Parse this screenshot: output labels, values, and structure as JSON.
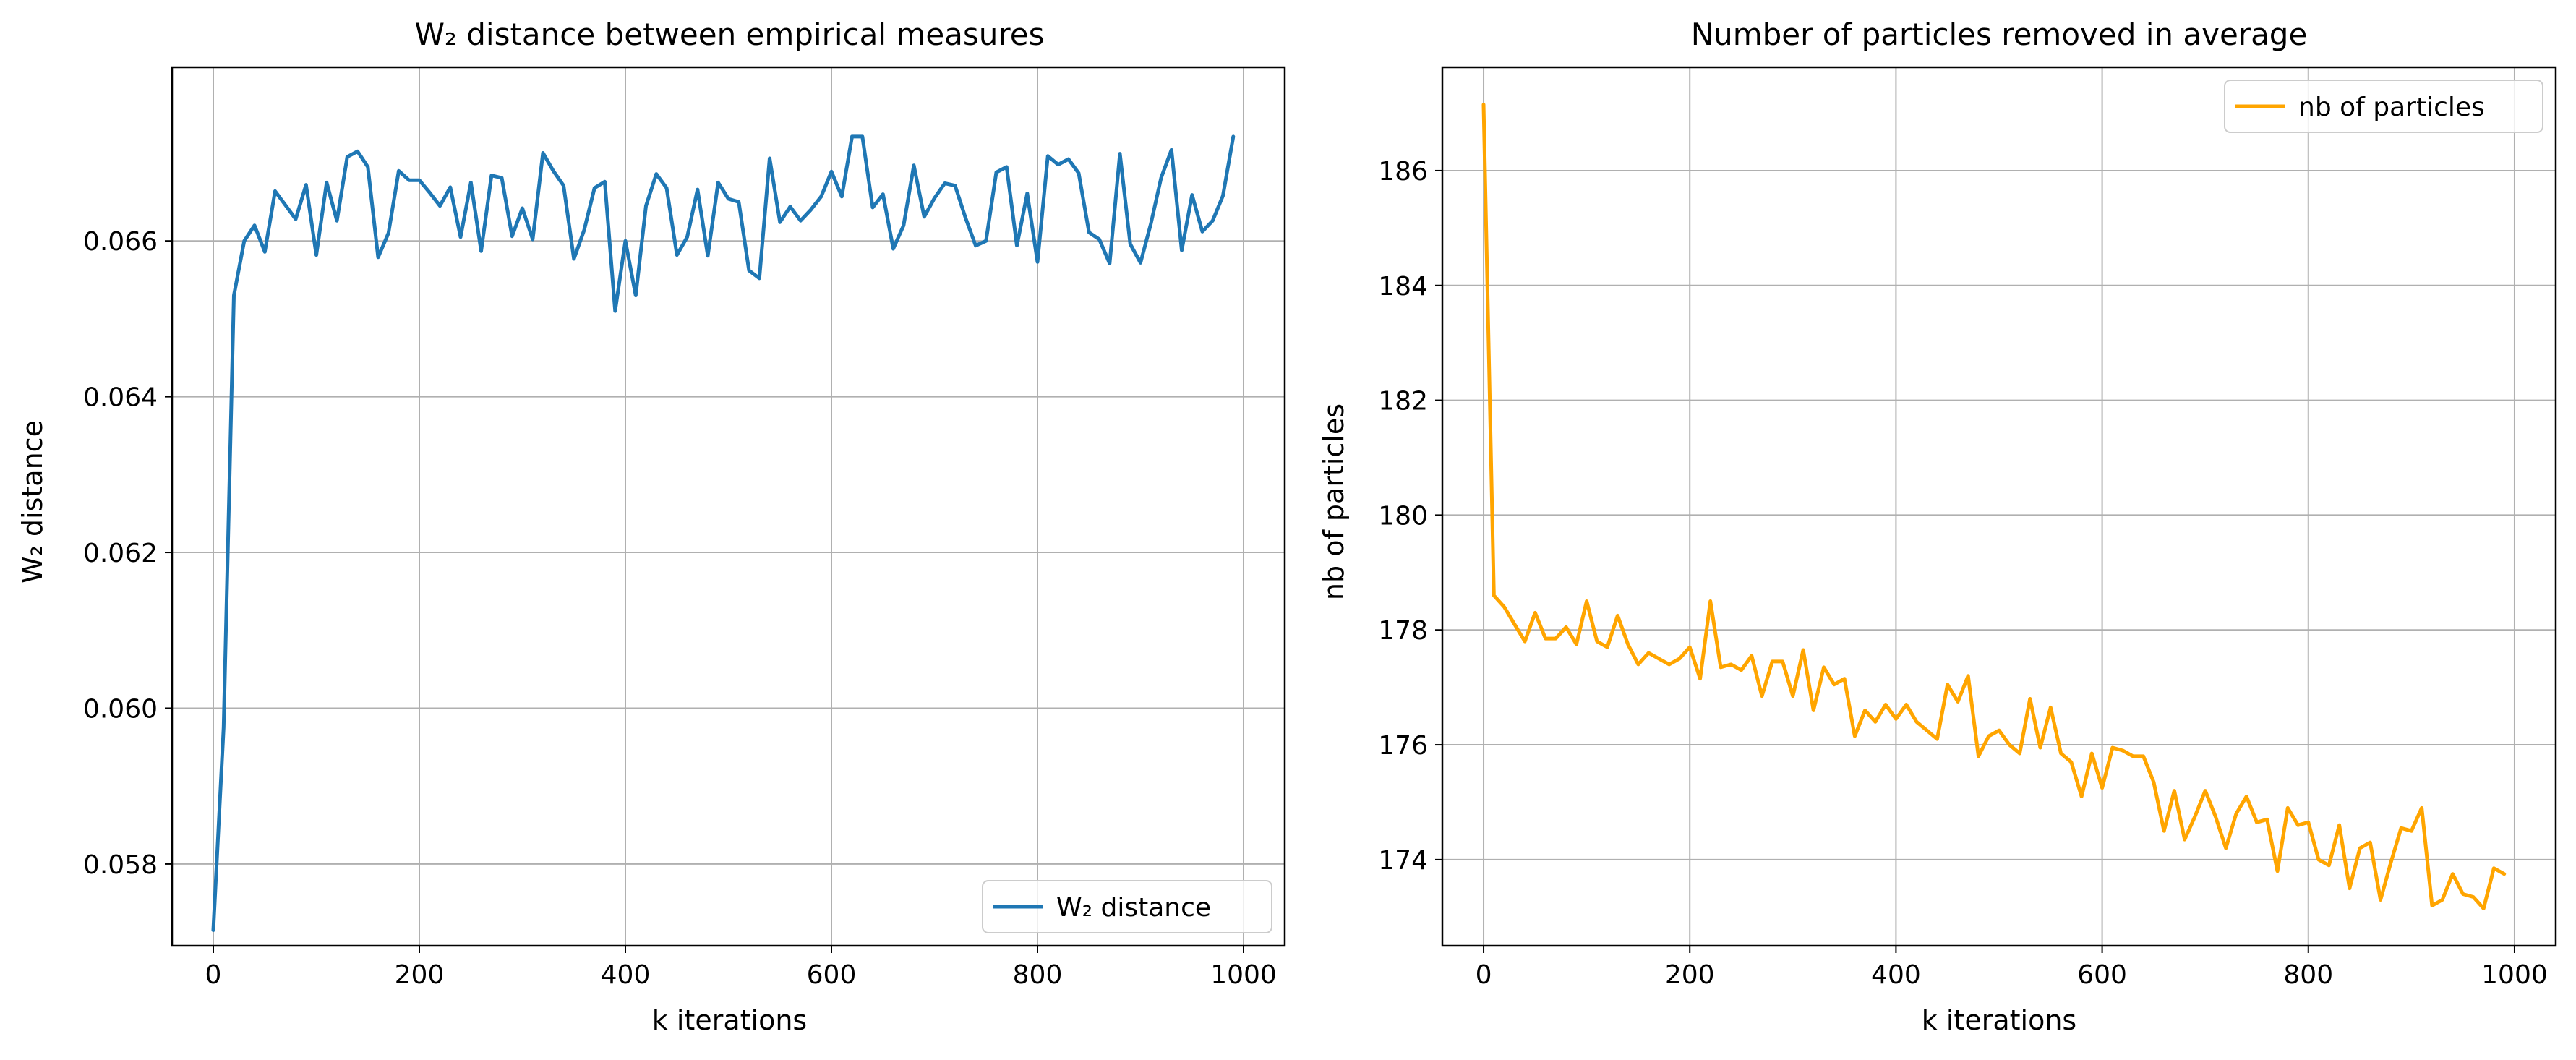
{
  "chart_data": [
    {
      "type": "line",
      "title": "W₂ distance between empirical measures",
      "xlabel": "k iterations",
      "ylabel": "W₂ distance",
      "xlim": [
        -40,
        1040
      ],
      "ylim": [
        0.05695,
        0.06823
      ],
      "xticks": [
        0,
        200,
        400,
        600,
        800,
        1000
      ],
      "xtick_labels": [
        "0",
        "200",
        "400",
        "600",
        "800",
        "1000"
      ],
      "yticks": [
        0.058,
        0.06,
        0.062,
        0.064,
        0.066
      ],
      "ytick_labels": [
        "0.058",
        "0.060",
        "0.062",
        "0.064",
        "0.066"
      ],
      "grid": true,
      "legend_position": "lower-right",
      "series": [
        {
          "name": "W₂ distance",
          "color": "#1f77b4",
          "x": [
            0,
            10,
            20,
            30,
            40,
            50,
            60,
            70,
            80,
            90,
            100,
            110,
            120,
            130,
            140,
            150,
            160,
            170,
            180,
            190,
            200,
            210,
            220,
            230,
            240,
            250,
            260,
            270,
            280,
            290,
            300,
            310,
            320,
            330,
            340,
            350,
            360,
            370,
            380,
            390,
            400,
            410,
            420,
            430,
            440,
            450,
            460,
            470,
            480,
            490,
            500,
            510,
            520,
            530,
            540,
            550,
            560,
            570,
            580,
            590,
            600,
            610,
            620,
            630,
            640,
            650,
            660,
            670,
            680,
            690,
            700,
            710,
            720,
            730,
            740,
            750,
            760,
            770,
            780,
            790,
            800,
            810,
            820,
            830,
            840,
            850,
            860,
            870,
            880,
            890,
            900,
            910,
            920,
            930,
            940,
            950,
            960,
            970,
            980,
            990
          ],
          "y": [
            0.05715,
            0.05975,
            0.0653,
            0.066,
            0.0662,
            0.06586,
            0.06664,
            0.06646,
            0.06628,
            0.06672,
            0.06582,
            0.06675,
            0.06626,
            0.06708,
            0.06715,
            0.06695,
            0.06579,
            0.0661,
            0.0669,
            0.06678,
            0.06678,
            0.06662,
            0.06645,
            0.06669,
            0.06605,
            0.06675,
            0.06587,
            0.06684,
            0.06681,
            0.06606,
            0.06642,
            0.06602,
            0.06713,
            0.0669,
            0.06671,
            0.06577,
            0.06614,
            0.06668,
            0.06676,
            0.0651,
            0.066,
            0.0653,
            0.06645,
            0.06686,
            0.06668,
            0.06582,
            0.06605,
            0.06666,
            0.06581,
            0.06675,
            0.06654,
            0.0665,
            0.06562,
            0.06552,
            0.06706,
            0.06624,
            0.06644,
            0.06626,
            0.0664,
            0.06657,
            0.06689,
            0.06657,
            0.06734,
            0.06734,
            0.06643,
            0.0666,
            0.0659,
            0.0662,
            0.06697,
            0.06631,
            0.06655,
            0.06674,
            0.06671,
            0.0663,
            0.06594,
            0.066,
            0.06688,
            0.06695,
            0.06594,
            0.06661,
            0.06573,
            0.06709,
            0.06698,
            0.06705,
            0.06687,
            0.06611,
            0.06602,
            0.06571,
            0.06712,
            0.06596,
            0.06572,
            0.06622,
            0.06681,
            0.06717,
            0.06588,
            0.06659,
            0.06612,
            0.06626,
            0.06658,
            0.06734
          ]
        }
      ]
    },
    {
      "type": "line",
      "title": "Number of particles removed in average",
      "xlabel": "k iterations",
      "ylabel": "nb of particles",
      "xlim": [
        -40,
        1040
      ],
      "ylim": [
        172.5,
        187.8
      ],
      "xticks": [
        0,
        200,
        400,
        600,
        800,
        1000
      ],
      "xtick_labels": [
        "0",
        "200",
        "400",
        "600",
        "800",
        "1000"
      ],
      "yticks": [
        174,
        176,
        178,
        180,
        182,
        184,
        186
      ],
      "ytick_labels": [
        "174",
        "176",
        "178",
        "180",
        "182",
        "184",
        "186"
      ],
      "grid": true,
      "legend_position": "upper-right",
      "series": [
        {
          "name": "nb of particles",
          "color": "#ffa500",
          "x": [
            0,
            10,
            20,
            30,
            40,
            50,
            60,
            70,
            80,
            90,
            100,
            110,
            120,
            130,
            140,
            150,
            160,
            170,
            180,
            190,
            200,
            210,
            220,
            230,
            240,
            250,
            260,
            270,
            280,
            290,
            300,
            310,
            320,
            330,
            340,
            350,
            360,
            370,
            380,
            390,
            400,
            410,
            420,
            430,
            440,
            450,
            460,
            470,
            480,
            490,
            500,
            510,
            520,
            530,
            540,
            550,
            560,
            570,
            580,
            590,
            600,
            610,
            620,
            630,
            640,
            650,
            660,
            670,
            680,
            690,
            700,
            710,
            720,
            730,
            740,
            750,
            760,
            770,
            780,
            790,
            800,
            810,
            820,
            830,
            840,
            850,
            860,
            870,
            880,
            890,
            900,
            910,
            920,
            930,
            940,
            950,
            960,
            970,
            980,
            990
          ],
          "y": [
            187.15,
            178.6,
            178.4,
            178.1,
            177.8,
            178.3,
            177.85,
            177.85,
            178.05,
            177.75,
            178.5,
            177.8,
            177.7,
            178.25,
            177.75,
            177.4,
            177.6,
            177.5,
            177.4,
            177.5,
            177.7,
            177.15,
            178.5,
            177.35,
            177.4,
            177.3,
            177.55,
            176.85,
            177.45,
            177.45,
            176.85,
            177.65,
            176.6,
            177.35,
            177.05,
            177.15,
            176.15,
            176.6,
            176.4,
            176.7,
            176.45,
            176.7,
            176.4,
            176.25,
            176.1,
            177.05,
            176.75,
            177.2,
            175.8,
            176.15,
            176.25,
            176.0,
            175.85,
            176.8,
            175.95,
            176.65,
            175.85,
            175.7,
            175.1,
            175.85,
            175.25,
            175.95,
            175.9,
            175.8,
            175.8,
            175.35,
            174.5,
            175.2,
            174.35,
            174.75,
            175.2,
            174.75,
            174.2,
            174.8,
            175.1,
            174.65,
            174.7,
            173.8,
            174.9,
            174.6,
            174.65,
            174.0,
            173.9,
            174.6,
            173.5,
            174.2,
            174.3,
            173.3,
            173.95,
            174.55,
            174.5,
            174.9,
            173.2,
            173.3,
            173.75,
            173.4,
            173.35,
            173.15,
            173.85,
            173.75
          ]
        }
      ]
    }
  ]
}
